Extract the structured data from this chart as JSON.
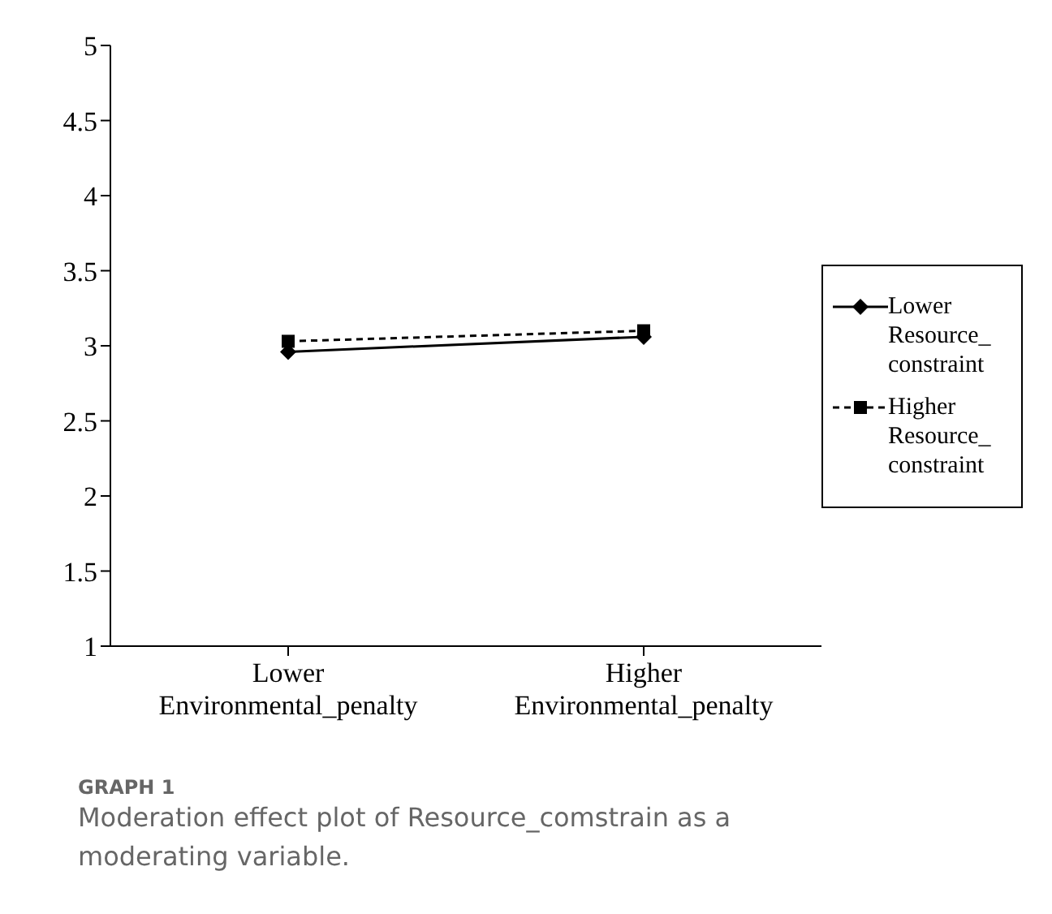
{
  "chart_data": {
    "type": "line",
    "categories": [
      "Lower\nEnvironmental_penalty",
      "Higher\nEnvironmental_penalty"
    ],
    "series": [
      {
        "name": "Lower Resource_ constraint",
        "color": "#000000",
        "values": [
          2.96,
          3.06
        ],
        "marker": "diamond",
        "line_style": "solid"
      },
      {
        "name": "Higher Resource_ constraint",
        "color": "#000000",
        "values": [
          3.03,
          3.1
        ],
        "marker": "square",
        "line_style": "dashed"
      }
    ],
    "ylim": [
      1,
      5
    ],
    "yticks": [
      1,
      1.5,
      2,
      2.5,
      3,
      3.5,
      4,
      4.5,
      5
    ],
    "grid": false,
    "legend": "right",
    "annotations": [
      "GRAPH 1",
      "Moderation effect plot of Resource_comstrain as a moderating variable."
    ]
  }
}
